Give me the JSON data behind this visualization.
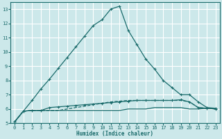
{
  "bg_color": "#cce8ea",
  "grid_color": "#ffffff",
  "line_color": "#1a6b6b",
  "xlabel": "Humidex (Indice chaleur)",
  "xlim": [
    -0.5,
    23.5
  ],
  "ylim": [
    5,
    13.5
  ],
  "xticks": [
    0,
    1,
    2,
    3,
    4,
    5,
    6,
    7,
    8,
    9,
    10,
    11,
    12,
    13,
    14,
    15,
    16,
    17,
    18,
    19,
    20,
    21,
    22,
    23
  ],
  "yticks": [
    5,
    6,
    7,
    8,
    9,
    10,
    11,
    12,
    13
  ],
  "line1_x": [
    0,
    1,
    2,
    3,
    4,
    5,
    6,
    7,
    8,
    9,
    10,
    11,
    12,
    13,
    14,
    15,
    16,
    17,
    18,
    19,
    20,
    21,
    22,
    23
  ],
  "line1_y": [
    5.1,
    5.85,
    6.6,
    7.4,
    8.1,
    8.85,
    9.6,
    10.35,
    11.1,
    11.85,
    12.25,
    13.0,
    13.2,
    11.5,
    10.5,
    9.5,
    8.8,
    8.0,
    7.5,
    7.0,
    7.0,
    6.5,
    6.1,
    6.05
  ],
  "line2_x": [
    0,
    1,
    2,
    3,
    4,
    5,
    6,
    7,
    8,
    9,
    10,
    11,
    12,
    13,
    14,
    15,
    16,
    17,
    18,
    19,
    20,
    21,
    22,
    23
  ],
  "line2_y": [
    5.1,
    5.85,
    5.9,
    5.9,
    5.9,
    5.9,
    5.9,
    5.9,
    5.9,
    5.9,
    5.9,
    5.9,
    5.9,
    6.0,
    6.0,
    6.0,
    6.1,
    6.1,
    6.1,
    6.1,
    6.0,
    6.0,
    6.05,
    6.0
  ],
  "line3_x": [
    0,
    1,
    2,
    3,
    4,
    5,
    6,
    7,
    8,
    9,
    10,
    11,
    12,
    13,
    14,
    15,
    16,
    17,
    18,
    19,
    20,
    21,
    22,
    23
  ],
  "line3_y": [
    5.1,
    5.85,
    5.9,
    5.9,
    5.9,
    5.9,
    6.0,
    6.1,
    6.2,
    6.3,
    6.4,
    6.5,
    6.55,
    6.6,
    6.6,
    6.6,
    6.6,
    6.6,
    6.6,
    6.6,
    6.5,
    6.1,
    6.05,
    6.0
  ],
  "line4_x": [
    0,
    1,
    2,
    3,
    4,
    5,
    6,
    7,
    8,
    9,
    10,
    11,
    12,
    13,
    14,
    15,
    16,
    17,
    18,
    19,
    20,
    21,
    22,
    23
  ],
  "line4_y": [
    5.1,
    5.85,
    5.9,
    5.9,
    6.1,
    6.15,
    6.2,
    6.25,
    6.3,
    6.35,
    6.4,
    6.45,
    6.5,
    6.55,
    6.6,
    6.6,
    6.6,
    6.6,
    6.6,
    6.65,
    6.5,
    6.1,
    6.05,
    6.0
  ]
}
